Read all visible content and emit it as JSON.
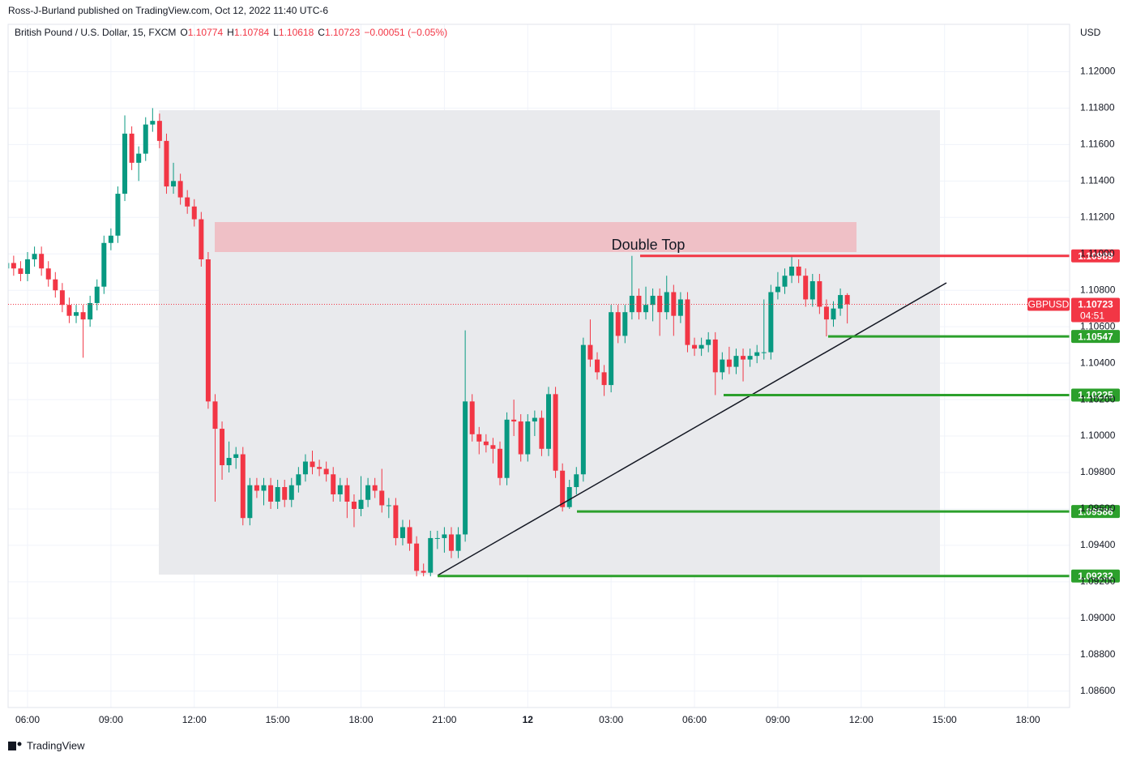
{
  "header": {
    "publisher": "Ross-J-Burland published on TradingView.com, Oct 12, 2022 11:40 UTC-6"
  },
  "footer": {
    "brand": "TradingView"
  },
  "chart_data": {
    "type": "candlestick",
    "title": "British Pound / U.S. Dollar, 15, FXCM",
    "ohlc_labels": [
      "O",
      "H",
      "L",
      "C"
    ],
    "change_label": "−0.00051 (−0.05%)",
    "currency": "USD",
    "symbol": "GBPUSD",
    "countdown": "04:51",
    "annotation": "Double Top",
    "up_color": "#089981",
    "down_color": "#f23645",
    "x": [
      5.25,
      5.5,
      5.75,
      6,
      6.25,
      6.5,
      6.75,
      7,
      7.25,
      7.5,
      7.75,
      8,
      8.25,
      8.5,
      8.75,
      9,
      9.25,
      9.5,
      9.75,
      10,
      10.25,
      10.5,
      10.75,
      11,
      11.25,
      11.5,
      11.75,
      12,
      12.25,
      12.5,
      12.75,
      13,
      13.25,
      13.5,
      13.75,
      14,
      14.25,
      14.5,
      14.75,
      15,
      15.25,
      15.5,
      15.75,
      16,
      16.25,
      16.5,
      16.75,
      17,
      17.25,
      17.5,
      17.75,
      18,
      18.25,
      18.5,
      18.75,
      19,
      19.25,
      19.5,
      19.75,
      20,
      20.25,
      20.5,
      20.75,
      21,
      21.25,
      21.5,
      21.75,
      22,
      22.25,
      22.5,
      22.75,
      23,
      23.25,
      23.5,
      23.75,
      24,
      24.25,
      24.5,
      24.75,
      25,
      25.25,
      25.5,
      25.75,
      26,
      26.25,
      26.5,
      26.75,
      27,
      27.25,
      27.5,
      27.75,
      28,
      28.25,
      28.5,
      28.75,
      29,
      29.25,
      29.5,
      29.75,
      30,
      30.25,
      30.5,
      30.75,
      31,
      31.25,
      31.5,
      31.75,
      32,
      32.25,
      32.5,
      32.75,
      33,
      33.25,
      33.5,
      33.75,
      34,
      34.25,
      34.5,
      34.75,
      35,
      35.25,
      35.5
    ],
    "open": [
      1.1092,
      1.1095,
      1.1092,
      1.1089,
      1.1097,
      1.11,
      1.1092,
      1.1086,
      1.108,
      1.1072,
      1.1066,
      1.1068,
      1.1064,
      1.1073,
      1.1082,
      1.1106,
      1.111,
      1.1133,
      1.1166,
      1.115,
      1.1155,
      1.1171,
      1.1173,
      1.1162,
      1.1137,
      1.114,
      1.1131,
      1.1126,
      1.1119,
      1.1097,
      1.1019,
      1.1004,
      1.0984,
      1.0988,
      1.099,
      1.0955,
      1.0973,
      1.097,
      1.0973,
      1.0964,
      1.0972,
      1.0965,
      1.0973,
      1.0979,
      1.0986,
      1.0983,
      1.0982,
      1.0979,
      1.0968,
      1.0973,
      1.0964,
      1.096,
      1.0965,
      1.0973,
      1.097,
      1.0962,
      1.0962,
      1.0944,
      1.095,
      1.0941,
      1.0926,
      1.0925,
      1.0944,
      1.0944,
      1.0946,
      1.0937,
      1.0946,
      1.1019,
      1.1001,
      1.0997,
      1.0995,
      1.0993,
      1.0977,
      1.1009,
      1.1008,
      1.099,
      1.1008,
      1.101,
      1.0993,
      1.1023,
      1.0981,
      1.0961,
      1.0972,
      1.0979,
      1.105,
      1.1042,
      1.1035,
      1.1028,
      1.1068,
      1.1055,
      1.1068,
      1.1077,
      1.1068,
      1.1072,
      1.1077,
      1.1068,
      1.1079,
      1.1066,
      1.1075,
      1.105,
      1.1048,
      1.105,
      1.1053,
      1.1035,
      1.1042,
      1.1038,
      1.1044,
      1.1042,
      1.1044,
      1.1046,
      1.1046,
      1.1079,
      1.1082,
      1.1088,
      1.1093,
      1.1088,
      1.1075,
      1.1085,
      1.1071,
      1.1064,
      1.107,
      1.10774
    ],
    "high": [
      1.1099,
      1.1099,
      1.1096,
      1.1101,
      1.1104,
      1.1104,
      1.1096,
      1.109,
      1.1084,
      1.1076,
      1.1072,
      1.1072,
      1.1077,
      1.1086,
      1.111,
      1.1114,
      1.1137,
      1.1176,
      1.117,
      1.1159,
      1.1175,
      1.118,
      1.1177,
      1.1166,
      1.115,
      1.1144,
      1.1135,
      1.113,
      1.1123,
      1.1101,
      1.1023,
      1.1008,
      1.0997,
      1.0994,
      1.0994,
      1.0977,
      1.0977,
      1.0977,
      1.0977,
      1.0976,
      1.0976,
      1.0977,
      1.0983,
      1.099,
      1.0992,
      1.0987,
      1.0986,
      1.0983,
      1.0977,
      1.0977,
      1.0968,
      1.0978,
      1.0977,
      1.0977,
      1.0982,
      1.0966,
      1.0966,
      1.0954,
      1.0954,
      1.0945,
      1.093,
      1.0948,
      1.0948,
      1.095,
      1.095,
      1.095,
      1.1058,
      1.1023,
      1.1005,
      1.1001,
      1.0999,
      1.0997,
      1.1013,
      1.102,
      1.1012,
      1.1012,
      1.1014,
      1.1014,
      1.1027,
      1.1027,
      1.0985,
      1.0976,
      1.0983,
      1.1054,
      1.1064,
      1.1046,
      1.1039,
      1.1072,
      1.1072,
      1.1072,
      1.10989,
      1.1081,
      1.1082,
      1.1081,
      1.1081,
      1.1088,
      1.1083,
      1.1079,
      1.1079,
      1.1054,
      1.1054,
      1.1057,
      1.1057,
      1.1046,
      1.1049,
      1.1048,
      1.1048,
      1.1048,
      1.105,
      1.1075,
      1.1083,
      1.109,
      1.1092,
      1.10989,
      1.1097,
      1.1092,
      1.1089,
      1.1089,
      1.1075,
      1.1074,
      1.1081,
      1.10784
    ],
    "low": [
      1.1088,
      1.1088,
      1.1085,
      1.1085,
      1.1093,
      1.1088,
      1.1082,
      1.1076,
      1.1068,
      1.1062,
      1.1062,
      1.1043,
      1.106,
      1.1069,
      1.1078,
      1.1102,
      1.1106,
      1.1129,
      1.1146,
      1.114,
      1.1151,
      1.1167,
      1.1158,
      1.1133,
      1.1133,
      1.1127,
      1.1122,
      1.1115,
      1.1093,
      1.1015,
      1.0964,
      1.0976,
      1.098,
      1.0982,
      1.0951,
      1.0951,
      1.0966,
      1.0962,
      1.096,
      1.096,
      1.0961,
      1.0961,
      1.0969,
      1.0975,
      1.0979,
      1.0978,
      1.0975,
      1.0964,
      1.0964,
      1.0955,
      1.095,
      1.0956,
      1.0961,
      1.0966,
      1.0958,
      1.0955,
      1.094,
      1.094,
      1.0937,
      1.0923,
      1.0923,
      1.0923,
      1.0938,
      1.0936,
      1.0933,
      1.0933,
      1.0942,
      1.0997,
      1.099,
      1.0991,
      1.0985,
      1.0973,
      1.0973,
      1.1,
      1.0986,
      1.0986,
      1.1,
      1.0989,
      1.0989,
      1.0977,
      1.09586,
      1.096,
      1.0968,
      1.0975,
      1.1038,
      1.1031,
      1.1022,
      1.1024,
      1.1051,
      1.1051,
      1.1064,
      1.1064,
      1.1064,
      1.1063,
      1.1055,
      1.1064,
      1.1055,
      1.1062,
      1.1046,
      1.1044,
      1.1044,
      1.1046,
      1.10225,
      1.1031,
      1.1034,
      1.1034,
      1.103,
      1.1038,
      1.104,
      1.1042,
      1.1042,
      1.1075,
      1.1078,
      1.1084,
      1.1084,
      1.1071,
      1.1071,
      1.1067,
      1.10547,
      1.106,
      1.1066,
      1.10618
    ],
    "close": [
      1.1095,
      1.1092,
      1.1089,
      1.1097,
      1.11,
      1.1092,
      1.1086,
      1.108,
      1.1072,
      1.1066,
      1.1068,
      1.1064,
      1.1073,
      1.1082,
      1.1106,
      1.111,
      1.1133,
      1.1166,
      1.115,
      1.1155,
      1.1171,
      1.1173,
      1.1162,
      1.1137,
      1.114,
      1.1131,
      1.1126,
      1.1119,
      1.1097,
      1.1019,
      1.1004,
      1.0984,
      1.0988,
      1.099,
      1.0955,
      1.0973,
      1.097,
      1.0973,
      1.0964,
      1.0972,
      1.0965,
      1.0973,
      1.0979,
      1.0986,
      1.0983,
      1.0982,
      1.0979,
      1.0968,
      1.0973,
      1.0964,
      1.096,
      1.0965,
      1.0973,
      1.097,
      1.0962,
      1.0962,
      1.0944,
      1.095,
      1.0941,
      1.0926,
      1.0925,
      1.0944,
      1.0944,
      1.0946,
      1.0937,
      1.0946,
      1.1019,
      1.1001,
      1.0997,
      1.0995,
      1.0993,
      1.0977,
      1.1009,
      1.1008,
      1.099,
      1.1008,
      1.101,
      1.0993,
      1.1023,
      1.0981,
      1.0961,
      1.0972,
      1.0979,
      1.105,
      1.1042,
      1.1035,
      1.1028,
      1.1068,
      1.1055,
      1.1068,
      1.1077,
      1.1068,
      1.1072,
      1.1077,
      1.1068,
      1.1079,
      1.1066,
      1.1075,
      1.105,
      1.1048,
      1.105,
      1.1053,
      1.1035,
      1.1042,
      1.1038,
      1.1044,
      1.1042,
      1.1044,
      1.1046,
      1.1046,
      1.1079,
      1.1082,
      1.1088,
      1.1093,
      1.1088,
      1.1075,
      1.1085,
      1.1071,
      1.1064,
      1.107,
      1.10774,
      1.10723
    ],
    "levels": [
      {
        "value": 1.10989,
        "color": "#f23645"
      },
      {
        "value": 1.10547,
        "color": "#2ca02c"
      },
      {
        "value": 1.10225,
        "color": "#2ca02c"
      },
      {
        "value": 1.09586,
        "color": "#2ca02c"
      },
      {
        "value": 1.09232,
        "color": "#2ca02c"
      }
    ],
    "xlim": [
      5.3,
      43.5
    ],
    "xticks": [
      {
        "value": 6,
        "label": "06:00"
      },
      {
        "value": 9,
        "label": "09:00"
      },
      {
        "value": 12,
        "label": "12:00"
      },
      {
        "value": 15,
        "label": "15:00"
      },
      {
        "value": 18,
        "label": "18:00"
      },
      {
        "value": 21,
        "label": "21:00"
      },
      {
        "value": 24,
        "label": "12"
      },
      {
        "value": 27,
        "label": "03:00"
      },
      {
        "value": 30,
        "label": "06:00"
      },
      {
        "value": 33,
        "label": "09:00"
      },
      {
        "value": 36,
        "label": "12:00"
      },
      {
        "value": 39,
        "label": "15:00"
      },
      {
        "value": 42,
        "label": "18:00"
      }
    ],
    "ylim": [
      1.0851,
      1.1226
    ],
    "yticks": [
      {
        "value": 1.086,
        "label": "1.08600"
      },
      {
        "value": 1.088,
        "label": "1.08800"
      },
      {
        "value": 1.09,
        "label": "1.09000"
      },
      {
        "value": 1.092,
        "label": "1.09200"
      },
      {
        "value": 1.094,
        "label": "1.09400"
      },
      {
        "value": 1.096,
        "label": "1.09600"
      },
      {
        "value": 1.098,
        "label": "1.09800"
      },
      {
        "value": 1.1,
        "label": "1.10000"
      },
      {
        "value": 1.102,
        "label": "1.10200"
      },
      {
        "value": 1.104,
        "label": "1.10400"
      },
      {
        "value": 1.106,
        "label": "1.10600"
      },
      {
        "value": 1.108,
        "label": "1.10800"
      },
      {
        "value": 1.11,
        "label": "1.11000"
      },
      {
        "value": 1.112,
        "label": "1.11200"
      },
      {
        "value": 1.114,
        "label": "1.11400"
      },
      {
        "value": 1.116,
        "label": "1.11600"
      },
      {
        "value": 1.118,
        "label": "1.11800"
      },
      {
        "value": 1.12,
        "label": "1.12000"
      }
    ],
    "grid": true
  }
}
